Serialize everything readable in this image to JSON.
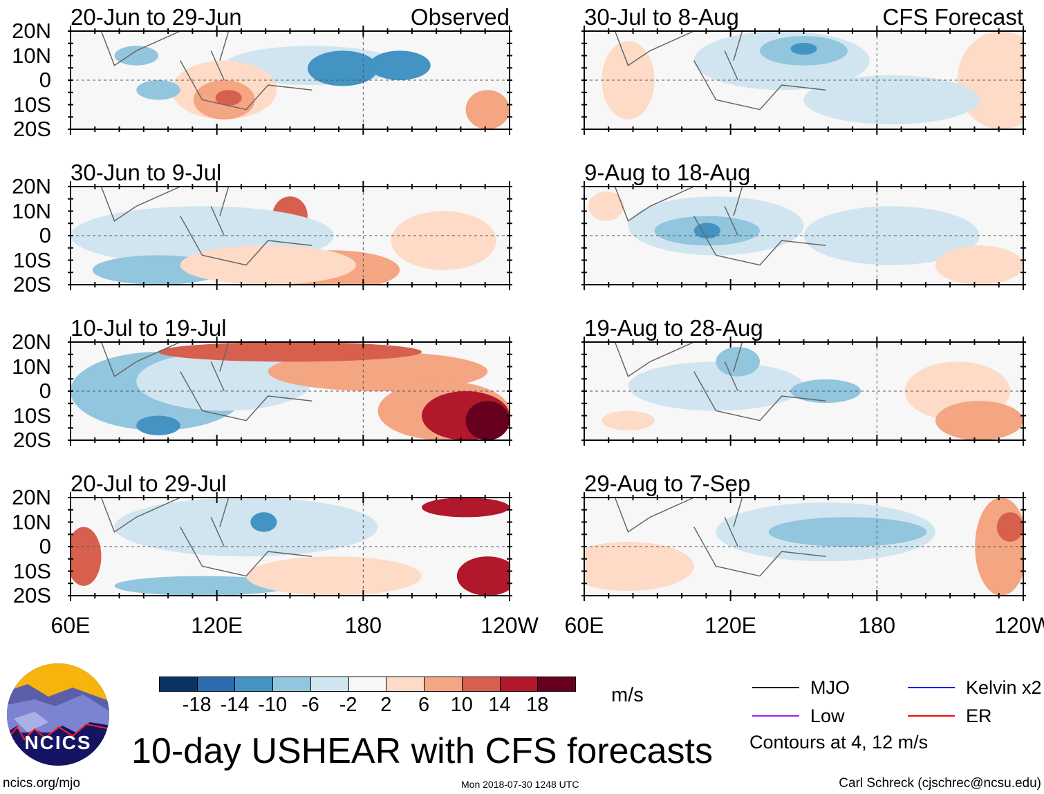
{
  "chart_data": {
    "type": "heatmap",
    "title": "10-day USHEAR with CFS forecasts",
    "units": "m/s",
    "observed_label": "Observed",
    "forecast_label": "CFS Forecast",
    "lat_ticks": [
      "20N",
      "10N",
      "0",
      "10S",
      "20S"
    ],
    "lon_ticks": [
      "60E",
      "120E",
      "180",
      "120W"
    ],
    "lat_range": [
      -20,
      20
    ],
    "lon_range": [
      60,
      240
    ],
    "panels": [
      {
        "title": "20-Jun to 29-Jun",
        "type": "observed"
      },
      {
        "title": "30-Jun to 9-Jul",
        "type": "observed"
      },
      {
        "title": "10-Jul to 19-Jul",
        "type": "observed"
      },
      {
        "title": "20-Jul to 29-Jul",
        "type": "observed"
      },
      {
        "title": "30-Jul to 8-Aug",
        "type": "forecast"
      },
      {
        "title": "9-Aug to 18-Aug",
        "type": "forecast"
      },
      {
        "title": "19-Aug to 28-Aug",
        "type": "forecast"
      },
      {
        "title": "29-Aug to 7-Sep",
        "type": "forecast"
      }
    ],
    "colorbar": {
      "labels": [
        "-18",
        "-14",
        "-10",
        "-6",
        "-2",
        "2",
        "6",
        "10",
        "14",
        "18"
      ],
      "colors": [
        "#0a3264",
        "#2b6cb0",
        "#4393c3",
        "#92c5de",
        "#d1e5f0",
        "#f7f7f7",
        "#fddbc7",
        "#f4a582",
        "#d6604d",
        "#b2182b",
        "#67001f"
      ]
    },
    "legend": [
      {
        "label": "MJO",
        "color": "#000000"
      },
      {
        "label": "Kelvin x2",
        "color": "#0000ff"
      },
      {
        "label": "Low",
        "color": "#a020f0"
      },
      {
        "label": "ER",
        "color": "#ff0000"
      }
    ],
    "contour_note": "Contours at 4, 12 m/s"
  },
  "footer": {
    "logo_text": "NCICS",
    "url": "ncics.org/mjo",
    "timestamp": "Mon 2018-07-30 1248 UTC",
    "author": "Carl Schreck (cjschrec@ncsu.edu)"
  }
}
